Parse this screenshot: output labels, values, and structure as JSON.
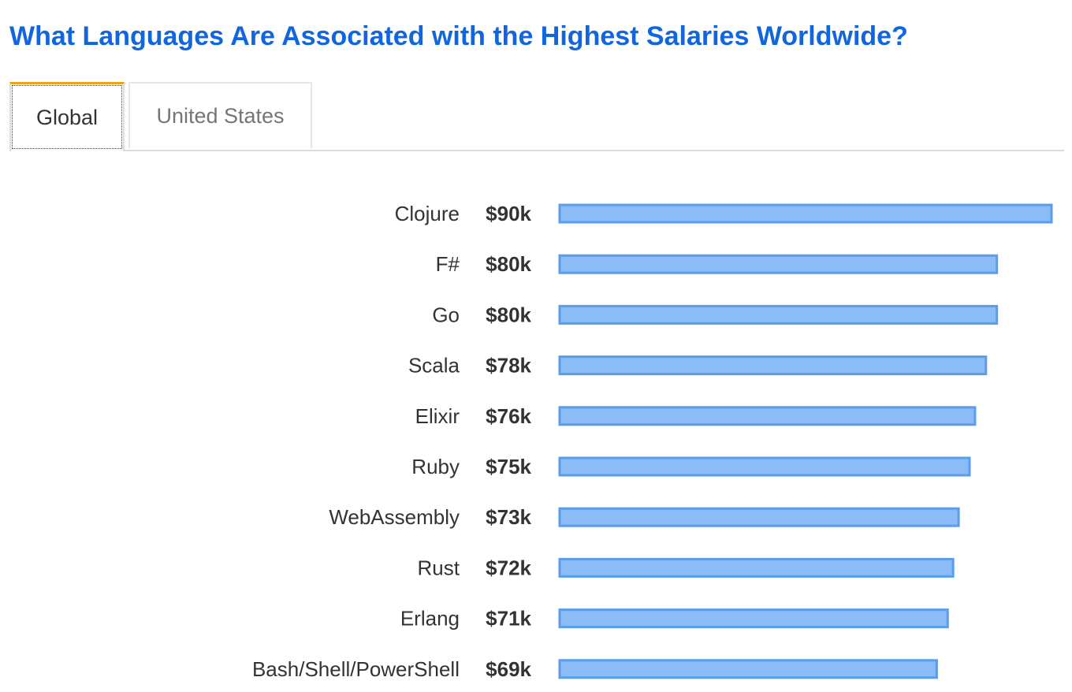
{
  "title": "What Languages Are Associated with the Highest Salaries Worldwide?",
  "tabs": [
    {
      "label": "Global",
      "active": true
    },
    {
      "label": "United States",
      "active": false
    }
  ],
  "colors": {
    "title": "#1166dd",
    "bar_fill": "#8bbcf8",
    "bar_stroke": "#5a9ded",
    "active_tab_accent": "#e8a317"
  },
  "chart_data": {
    "type": "bar",
    "orientation": "horizontal",
    "categories": [
      "Clojure",
      "F#",
      "Go",
      "Scala",
      "Elixir",
      "Ruby",
      "WebAssembly",
      "Rust",
      "Erlang",
      "Bash/Shell/PowerShell"
    ],
    "values": [
      90,
      80,
      80,
      78,
      76,
      75,
      73,
      72,
      71,
      69
    ],
    "value_labels": [
      "$90k",
      "$80k",
      "$80k",
      "$78k",
      "$76k",
      "$75k",
      "$73k",
      "$72k",
      "$71k",
      "$69k"
    ],
    "unit": "thousand USD",
    "xlim": [
      0,
      90
    ],
    "grid": false,
    "legend": "none"
  }
}
